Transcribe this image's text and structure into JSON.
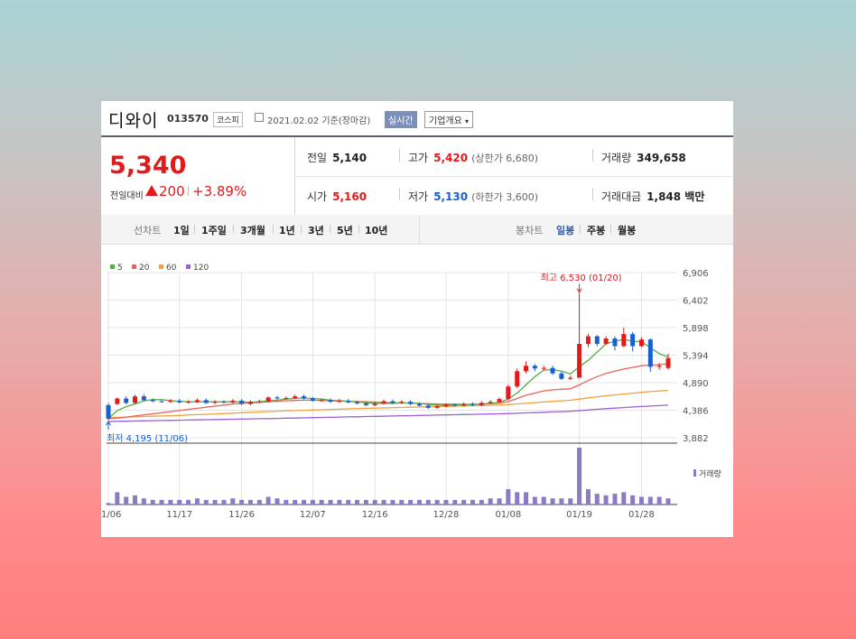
{
  "header": {
    "name": "디와이",
    "code": "013570",
    "market": "코스피",
    "date": "2021.02.02 기준(장마감)",
    "realtime": "실시간",
    "company_info": "기업개요"
  },
  "price": {
    "current": "5,340",
    "change_label": "전일대비",
    "change": "200",
    "change_pct": "+3.89%",
    "prev_label": "전일",
    "prev": "5,140",
    "high_label": "고가",
    "high": "5,420",
    "upper_limit": "(상한가 6,680)",
    "volume_label": "거래량",
    "volume": "349,658",
    "open_label": "시가",
    "open": "5,160",
    "low_label": "저가",
    "low": "5,130",
    "lower_limit": "(하한가 3,600)",
    "amount_label": "거래대금",
    "amount": "1,848 백만"
  },
  "toolbar": {
    "line_label": "선차트",
    "line_items": [
      "1일",
      "1주일",
      "3개월",
      "1년",
      "3년",
      "5년",
      "10년"
    ],
    "candle_label": "봉차트",
    "candle_items": [
      "일봉",
      "주봉",
      "월봉"
    ],
    "candle_selected": "일봉"
  },
  "colors": {
    "up": "#e41919",
    "down": "#1a5fcf",
    "ma5": "#55b044",
    "ma20": "#e8635a",
    "ma60": "#f2a13c",
    "ma120": "#9b5fd6",
    "volume": "#8a7bc4"
  },
  "chart_data": {
    "type": "candlestick",
    "legend": [
      "5",
      "20",
      "60",
      "120"
    ],
    "y_ticks": [
      "6,906",
      "6,402",
      "5,898",
      "5,394",
      "4,890",
      "4,386",
      "3,882"
    ],
    "ylim": [
      3882,
      6906
    ],
    "x_ticks": [
      "11/06",
      "11/17",
      "11/26",
      "12/07",
      "12/16",
      "12/28",
      "01/08",
      "01/19",
      "01/28"
    ],
    "high_annotation": "최고 6,530 (01/20)",
    "low_annotation": "최저 4,195 (11/06)",
    "volume_label": "거래량",
    "candles": [
      [
        4480,
        4230,
        4520,
        4195,
        1
      ],
      [
        4500,
        4600,
        4620,
        4480,
        8
      ],
      [
        4600,
        4520,
        4640,
        4490,
        5
      ],
      [
        4520,
        4640,
        4670,
        4500,
        6
      ],
      [
        4640,
        4570,
        4680,
        4550,
        4
      ],
      [
        4570,
        4550,
        4600,
        4530,
        3
      ],
      [
        4550,
        4540,
        4580,
        4520,
        3
      ],
      [
        4540,
        4560,
        4590,
        4520,
        3
      ],
      [
        4560,
        4530,
        4590,
        4510,
        3
      ],
      [
        4530,
        4540,
        4570,
        4510,
        3
      ],
      [
        4540,
        4570,
        4600,
        4520,
        4
      ],
      [
        4570,
        4520,
        4600,
        4500,
        3
      ],
      [
        4520,
        4540,
        4570,
        4500,
        3
      ],
      [
        4540,
        4530,
        4570,
        4510,
        3
      ],
      [
        4530,
        4560,
        4590,
        4510,
        4
      ],
      [
        4560,
        4500,
        4590,
        4480,
        3
      ],
      [
        4500,
        4540,
        4570,
        4480,
        3
      ],
      [
        4540,
        4550,
        4580,
        4520,
        3
      ],
      [
        4550,
        4620,
        4640,
        4530,
        5
      ],
      [
        4620,
        4600,
        4650,
        4580,
        4
      ],
      [
        4600,
        4610,
        4640,
        4580,
        3
      ],
      [
        4610,
        4640,
        4670,
        4590,
        3
      ],
      [
        4640,
        4600,
        4670,
        4580,
        3
      ],
      [
        4600,
        4560,
        4630,
        4540,
        3
      ],
      [
        4560,
        4570,
        4600,
        4540,
        3
      ],
      [
        4570,
        4540,
        4600,
        4520,
        3
      ],
      [
        4540,
        4560,
        4590,
        4520,
        3
      ],
      [
        4560,
        4530,
        4590,
        4510,
        3
      ],
      [
        4530,
        4510,
        4560,
        4490,
        3
      ],
      [
        4510,
        4480,
        4540,
        4460,
        3
      ],
      [
        4480,
        4510,
        4540,
        4460,
        3
      ],
      [
        4510,
        4550,
        4580,
        4490,
        3
      ],
      [
        4550,
        4520,
        4580,
        4500,
        3
      ],
      [
        4520,
        4540,
        4570,
        4500,
        3
      ],
      [
        4540,
        4500,
        4570,
        4480,
        3
      ],
      [
        4500,
        4470,
        4530,
        4450,
        3
      ],
      [
        4470,
        4430,
        4500,
        4410,
        3
      ],
      [
        4430,
        4460,
        4490,
        4410,
        3
      ],
      [
        4460,
        4490,
        4510,
        4440,
        3
      ],
      [
        4490,
        4470,
        4510,
        4450,
        3
      ],
      [
        4470,
        4500,
        4530,
        4450,
        3
      ],
      [
        4500,
        4480,
        4530,
        4460,
        3
      ],
      [
        4480,
        4520,
        4550,
        4460,
        3
      ],
      [
        4520,
        4540,
        4570,
        4500,
        4
      ],
      [
        4540,
        4590,
        4620,
        4520,
        4
      ],
      [
        4590,
        4820,
        4850,
        4570,
        10
      ],
      [
        4820,
        5100,
        5150,
        4790,
        8
      ],
      [
        5100,
        5200,
        5280,
        5060,
        8
      ],
      [
        5200,
        5150,
        5230,
        5100,
        5
      ],
      [
        5150,
        5160,
        5200,
        5110,
        5
      ],
      [
        5160,
        5060,
        5200,
        5030,
        4
      ],
      [
        5060,
        4960,
        5090,
        4940,
        4
      ],
      [
        4960,
        4980,
        5020,
        4940,
        4
      ],
      [
        4980,
        5600,
        6530,
        5250,
        37
      ],
      [
        5600,
        5740,
        5790,
        5540,
        10
      ],
      [
        5740,
        5600,
        5760,
        5560,
        7
      ],
      [
        5600,
        5700,
        5740,
        5580,
        6
      ],
      [
        5700,
        5560,
        5740,
        5480,
        7
      ],
      [
        5560,
        5780,
        5900,
        5540,
        8
      ],
      [
        5780,
        5560,
        5820,
        5460,
        6
      ],
      [
        5560,
        5680,
        5720,
        5540,
        5
      ],
      [
        5680,
        5180,
        5700,
        5090,
        5
      ],
      [
        5180,
        5200,
        5250,
        5130,
        5
      ],
      [
        5160,
        5340,
        5420,
        5130,
        4
      ]
    ],
    "ma5": [
      4230,
      4380,
      4450,
      4500,
      4560,
      4580,
      4580,
      4560,
      4550,
      4540,
      4540,
      4540,
      4540,
      4540,
      4540,
      4540,
      4530,
      4540,
      4560,
      4570,
      4590,
      4600,
      4610,
      4600,
      4590,
      4570,
      4560,
      4550,
      4540,
      4520,
      4510,
      4510,
      4510,
      4520,
      4520,
      4510,
      4490,
      4480,
      4470,
      4480,
      4490,
      4490,
      4500,
      4510,
      4530,
      4590,
      4700,
      4850,
      5000,
      5120,
      5130,
      5100,
      5050,
      5180,
      5300,
      5450,
      5600,
      5650,
      5680,
      5650,
      5640,
      5530,
      5420,
      5360
    ],
    "ma20": [
      4230,
      4240,
      4260,
      4280,
      4300,
      4320,
      4340,
      4360,
      4380,
      4400,
      4420,
      4440,
      4460,
      4480,
      4500,
      4510,
      4520,
      4530,
      4540,
      4550,
      4560,
      4565,
      4570,
      4570,
      4565,
      4560,
      4555,
      4550,
      4545,
      4540,
      4535,
      4530,
      4525,
      4520,
      4515,
      4510,
      4505,
      4500,
      4498,
      4496,
      4495,
      4495,
      4498,
      4505,
      4515,
      4545,
      4600,
      4660,
      4700,
      4740,
      4760,
      4770,
      4780,
      4850,
      4930,
      5000,
      5060,
      5100,
      5140,
      5170,
      5200,
      5210,
      5220,
      5235
    ],
    "ma60": [
      4250,
      4255,
      4260,
      4265,
      4270,
      4275,
      4280,
      4285,
      4290,
      4300,
      4305,
      4310,
      4318,
      4325,
      4332,
      4340,
      4348,
      4355,
      4362,
      4368,
      4375,
      4380,
      4385,
      4390,
      4395,
      4400,
      4405,
      4410,
      4415,
      4420,
      4424,
      4428,
      4432,
      4436,
      4440,
      4444,
      4448,
      4452,
      4456,
      4460,
      4464,
      4468,
      4472,
      4476,
      4480,
      4490,
      4500,
      4512,
      4524,
      4536,
      4548,
      4558,
      4568,
      4590,
      4612,
      4632,
      4650,
      4666,
      4682,
      4698,
      4714,
      4726,
      4738,
      4750
    ],
    "ma120": [
      4180,
      4182,
      4185,
      4188,
      4191,
      4194,
      4197,
      4200,
      4203,
      4206,
      4209,
      4212,
      4215,
      4218,
      4221,
      4224,
      4227,
      4230,
      4233,
      4236,
      4240,
      4243,
      4246,
      4250,
      4253,
      4256,
      4260,
      4263,
      4266,
      4270,
      4273,
      4276,
      4280,
      4283,
      4286,
      4290,
      4293,
      4296,
      4300,
      4303,
      4306,
      4310,
      4313,
      4316,
      4320,
      4325,
      4330,
      4336,
      4342,
      4348,
      4354,
      4360,
      4366,
      4378,
      4390,
      4402,
      4414,
      4424,
      4434,
      4444,
      4454,
      4462,
      4470,
      4478
    ]
  }
}
